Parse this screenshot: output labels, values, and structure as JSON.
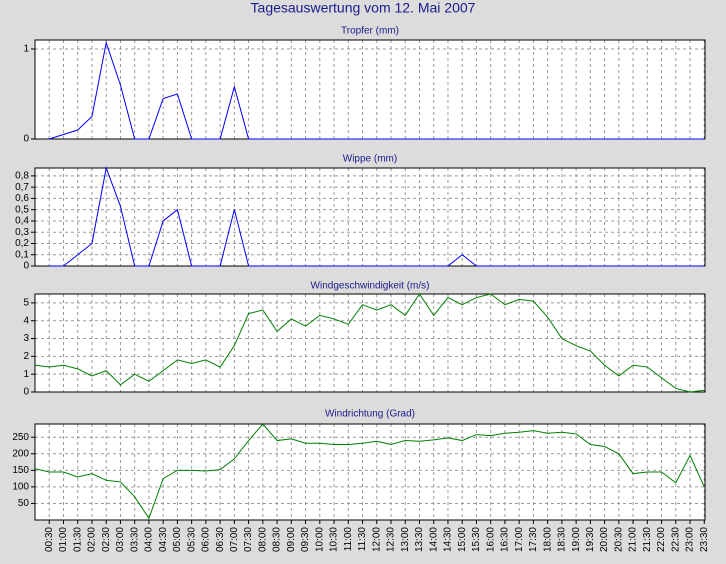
{
  "title": "Tagesauswertung vom 12. Mai 2007",
  "chart_data": [
    {
      "type": "line",
      "title": "Tropfer (mm)",
      "color": "#0000ff",
      "grid": true,
      "ylim": [
        0,
        1.1
      ],
      "yticks": [
        0,
        1
      ],
      "values": [
        null,
        0,
        0.05,
        0.1,
        0.25,
        1.07,
        0.6,
        0,
        0,
        0.45,
        0.5,
        0,
        0,
        0,
        0.58,
        0,
        0,
        0,
        0,
        0,
        0,
        0,
        0,
        0,
        0,
        0,
        0,
        0,
        0,
        0,
        0,
        0,
        0,
        0,
        0,
        0,
        0,
        0,
        0,
        0,
        0,
        0,
        0,
        0,
        0,
        0,
        0,
        0
      ]
    },
    {
      "type": "line",
      "title": "Wippe (mm)",
      "color": "#0000ff",
      "grid": true,
      "ylim": [
        0,
        0.87
      ],
      "yticks": [
        0,
        {
          "value": 0.1,
          "label": "0,1"
        },
        {
          "value": 0.2,
          "label": "0,2"
        },
        {
          "value": 0.3,
          "label": "0,3"
        },
        {
          "value": 0.4,
          "label": "0,4"
        },
        {
          "value": 0.5,
          "label": "0,5"
        },
        {
          "value": 0.6,
          "label": "0,6"
        },
        {
          "value": 0.7,
          "label": "0,7"
        },
        {
          "value": 0.8,
          "label": "0,8"
        }
      ],
      "values": [
        null,
        0,
        0,
        0.1,
        0.2,
        0.87,
        0.53,
        0,
        0,
        0.4,
        0.5,
        0,
        0,
        0,
        0.5,
        0,
        0,
        0,
        0,
        0,
        0,
        0,
        0,
        0,
        0,
        0,
        0,
        0,
        0,
        0,
        0.1,
        0,
        0,
        0,
        0,
        0,
        0,
        0,
        0,
        0,
        0,
        0,
        0,
        0,
        0,
        0,
        0,
        0
      ]
    },
    {
      "type": "line",
      "title": "Windgeschwindigkeit (m/s)",
      "color": "#008000",
      "grid": true,
      "ylim": [
        0,
        5.5
      ],
      "yticks": [
        0,
        1,
        2,
        3,
        4,
        5
      ],
      "values": [
        1.5,
        1.4,
        1.5,
        1.3,
        0.9,
        1.2,
        0.4,
        1.0,
        0.6,
        1.2,
        1.8,
        1.6,
        1.8,
        1.4,
        2.6,
        4.4,
        4.6,
        3.4,
        4.1,
        3.7,
        4.3,
        4.1,
        3.8,
        4.9,
        4.6,
        4.9,
        4.3,
        5.5,
        4.3,
        5.3,
        4.9,
        5.3,
        5.5,
        4.9,
        5.2,
        5.1,
        4.2,
        3.0,
        2.6,
        2.3,
        1.5,
        0.9,
        1.5,
        1.4,
        0.8,
        0.2,
        0,
        0.1
      ]
    },
    {
      "type": "line",
      "title": "Windrichtung (Grad)",
      "color": "#008000",
      "grid": true,
      "ylim": [
        0,
        290
      ],
      "yticks": [
        50,
        100,
        150,
        200,
        250
      ],
      "categories": [
        null,
        "00:30",
        "01:00",
        "01:30",
        "02:00",
        "02:30",
        "03:00",
        "03:30",
        "04:00",
        "04:30",
        "05:00",
        "05:30",
        "06:00",
        "06:30",
        "07:00",
        "07:30",
        "08:00",
        "08:30",
        "09:00",
        "09:30",
        "10:00",
        "10:30",
        "11:00",
        "11:30",
        "12:00",
        "12:30",
        "13:00",
        "13:30",
        "14:00",
        "14:30",
        "15:00",
        "15:30",
        "16:00",
        "16:30",
        "17:00",
        "17:30",
        "18:00",
        "18:30",
        "19:00",
        "19:30",
        "20:00",
        "20:30",
        "21:00",
        "21:30",
        "22:00",
        "22:30",
        "23:00",
        "23:30"
      ],
      "values": [
        155,
        145,
        145,
        130,
        140,
        120,
        115,
        70,
        5,
        125,
        150,
        150,
        148,
        152,
        185,
        240,
        290,
        240,
        245,
        232,
        232,
        228,
        228,
        232,
        238,
        228,
        240,
        238,
        242,
        248,
        240,
        258,
        255,
        262,
        265,
        270,
        262,
        265,
        260,
        228,
        222,
        200,
        140,
        145,
        145,
        112,
        195,
        100
      ]
    }
  ]
}
